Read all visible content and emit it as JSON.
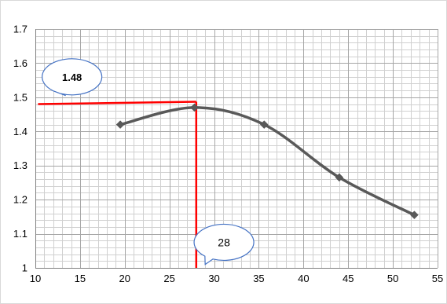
{
  "chart_data": {
    "type": "line",
    "title": "",
    "xlabel": "",
    "ylabel": "",
    "xlim": [
      10,
      55
    ],
    "ylim": [
      1.0,
      1.7
    ],
    "x_ticks": [
      10,
      15,
      20,
      25,
      30,
      35,
      40,
      45,
      50,
      55
    ],
    "y_ticks": [
      1.0,
      1.1,
      1.2,
      1.3,
      1.4,
      1.5,
      1.6,
      1.7
    ],
    "x_tick_labels": [
      "10",
      "15",
      "20",
      "25",
      "30",
      "35",
      "40",
      "45",
      "50",
      "55"
    ],
    "y_tick_labels": [
      "1",
      "1.1",
      "1.2",
      "1.3",
      "1.4",
      "1.5",
      "1.6",
      "1.7"
    ],
    "grid": true,
    "grid_minor_x": 1,
    "grid_minor_y": 0.02,
    "line_color": "#595959",
    "marker": "diamond",
    "series": [
      {
        "x": [
          19.5,
          27.8,
          35.6,
          44.0,
          52.4
        ],
        "y": [
          1.42,
          1.47,
          1.42,
          1.265,
          1.155
        ]
      }
    ],
    "reference_lines": {
      "color": "#ff0000",
      "horizontal": {
        "y": 1.48,
        "x_from": 10.3,
        "x_to": 28.0
      },
      "vertical": {
        "x": 28.0,
        "y_from": 1.0,
        "y_to": 1.48
      }
    },
    "annotations": [
      {
        "text": "1.48",
        "bold": true,
        "x": 14.1,
        "y": 1.56,
        "pointer_x": 13.4,
        "pointer_y": 1.505
      },
      {
        "text": "28",
        "bold": false,
        "x": 31.1,
        "y": 1.075,
        "pointer_x": 29.0,
        "pointer_y": 1.01
      }
    ]
  }
}
